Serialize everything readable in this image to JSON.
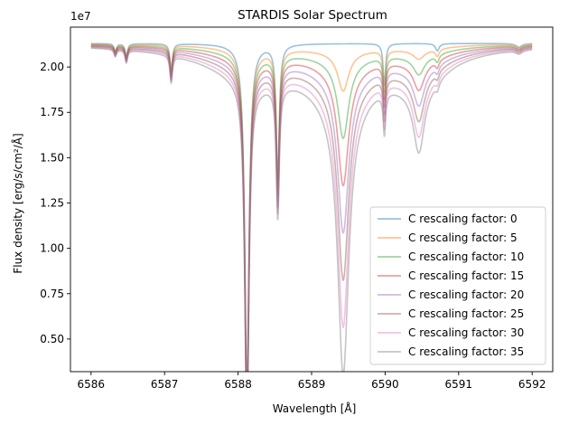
{
  "chart_data": {
    "type": "line",
    "title": "STARDIS Solar Spectrum",
    "xlabel": "Wavelength [Å]",
    "ylabel": "Flux density [erg/s/cm²/Å]",
    "y_offset_label": "1e7",
    "xlim": [
      6585.72,
      6592.28
    ],
    "ylim": [
      0.32,
      2.22
    ],
    "xticks": [
      6586,
      6587,
      6588,
      6589,
      6590,
      6591,
      6592
    ],
    "yticks": [
      0.5,
      0.75,
      1.0,
      1.25,
      1.5,
      1.75,
      2.0
    ],
    "xtick_labels": [
      "6586",
      "6587",
      "6588",
      "6589",
      "6590",
      "6591",
      "6592"
    ],
    "ytick_labels": [
      "0.50",
      "0.75",
      "1.00",
      "1.25",
      "1.50",
      "1.75",
      "2.00"
    ],
    "y_units_note": "values in units of 1e7 erg/s/cm²/Å",
    "legend_position": "lower right",
    "grid": false,
    "line_opacity": 0.45,
    "x_range": [
      6586.0,
      6592.0
    ],
    "continuum": 2.13,
    "series": [
      {
        "name": "C rescaling factor: 0",
        "color": "#1f77b4",
        "factor": 0
      },
      {
        "name": "C rescaling factor: 5",
        "color": "#ff7f0e",
        "factor": 5
      },
      {
        "name": "C rescaling factor: 10",
        "color": "#2ca02c",
        "factor": 10
      },
      {
        "name": "C rescaling factor: 15",
        "color": "#d62728",
        "factor": 15
      },
      {
        "name": "C rescaling factor: 20",
        "color": "#9467bd",
        "factor": 20
      },
      {
        "name": "C rescaling factor: 25",
        "color": "#8c564b",
        "factor": 25
      },
      {
        "name": "C rescaling factor: 30",
        "color": "#e377c2",
        "factor": 30
      },
      {
        "name": "C rescaling factor: 35",
        "color": "#7f7f7f",
        "factor": 35
      }
    ],
    "absorption_lines": [
      {
        "center": 6588.12,
        "depth": 1.91,
        "width": 0.035,
        "scales_with_factor": false
      },
      {
        "center": 6588.54,
        "depth": 0.73,
        "width": 0.025,
        "scales_with_factor": false
      },
      {
        "center": 6589.43,
        "depth_at_0": 0.0,
        "depth_at_35": 1.49,
        "width": 0.09,
        "scales_with_factor": true
      },
      {
        "center": 6589.99,
        "depth": 0.23,
        "width": 0.02,
        "scales_with_factor": false
      },
      {
        "center": 6590.46,
        "depth_at_0": 0.0,
        "depth_at_35": 0.35,
        "width": 0.09,
        "scales_with_factor": true
      },
      {
        "center": 6587.09,
        "depth": 0.15,
        "width": 0.02,
        "scales_with_factor": false
      },
      {
        "center": 6586.33,
        "depth": 0.04,
        "width": 0.02,
        "scales_with_factor": false
      },
      {
        "center": 6586.48,
        "depth": 0.07,
        "width": 0.02,
        "scales_with_factor": false
      },
      {
        "center": 6590.71,
        "depth": 0.04,
        "width": 0.03,
        "scales_with_factor": false
      },
      {
        "center": 6591.82,
        "depth": 0.02,
        "width": 0.05,
        "scales_with_factor": false
      }
    ],
    "broad_wings_depth_at_35": 0.48
  }
}
